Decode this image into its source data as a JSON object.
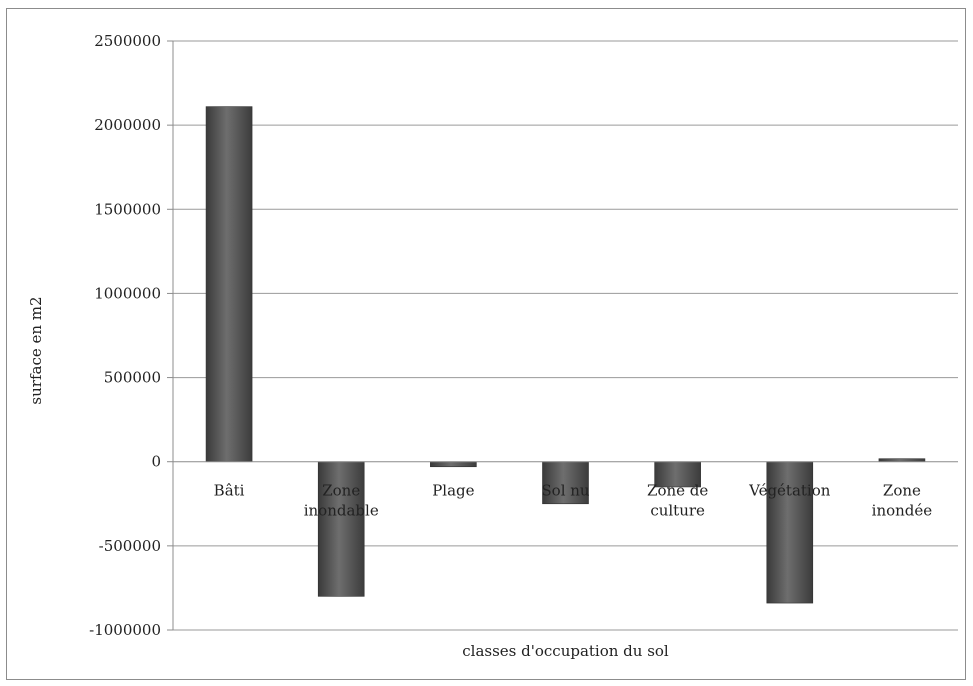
{
  "chart_data": {
    "type": "bar",
    "title": "",
    "xlabel": "classes d'occupation du sol",
    "ylabel": "surface en m2",
    "categories": [
      [
        "Bâti"
      ],
      [
        "Zone",
        "inondable"
      ],
      [
        "Plage"
      ],
      [
        "Sol nu"
      ],
      [
        "Zone de",
        "culture"
      ],
      [
        "Végétation"
      ],
      [
        "Zone",
        "inondée"
      ]
    ],
    "values": [
      2110000,
      -800000,
      -30000,
      -250000,
      -150000,
      -840000,
      10000
    ],
    "ylim": [
      -1000000,
      2500000
    ],
    "yticks": [
      2500000,
      2000000,
      1500000,
      1000000,
      500000,
      0,
      -500000,
      -1000000
    ],
    "ytick_labels": [
      "2500000",
      "2000000",
      "1500000",
      "1000000",
      "500000",
      "0",
      "-500000",
      "-1000000"
    ],
    "grid": true,
    "legend": "none",
    "bar_color": "#5a5a5a"
  }
}
